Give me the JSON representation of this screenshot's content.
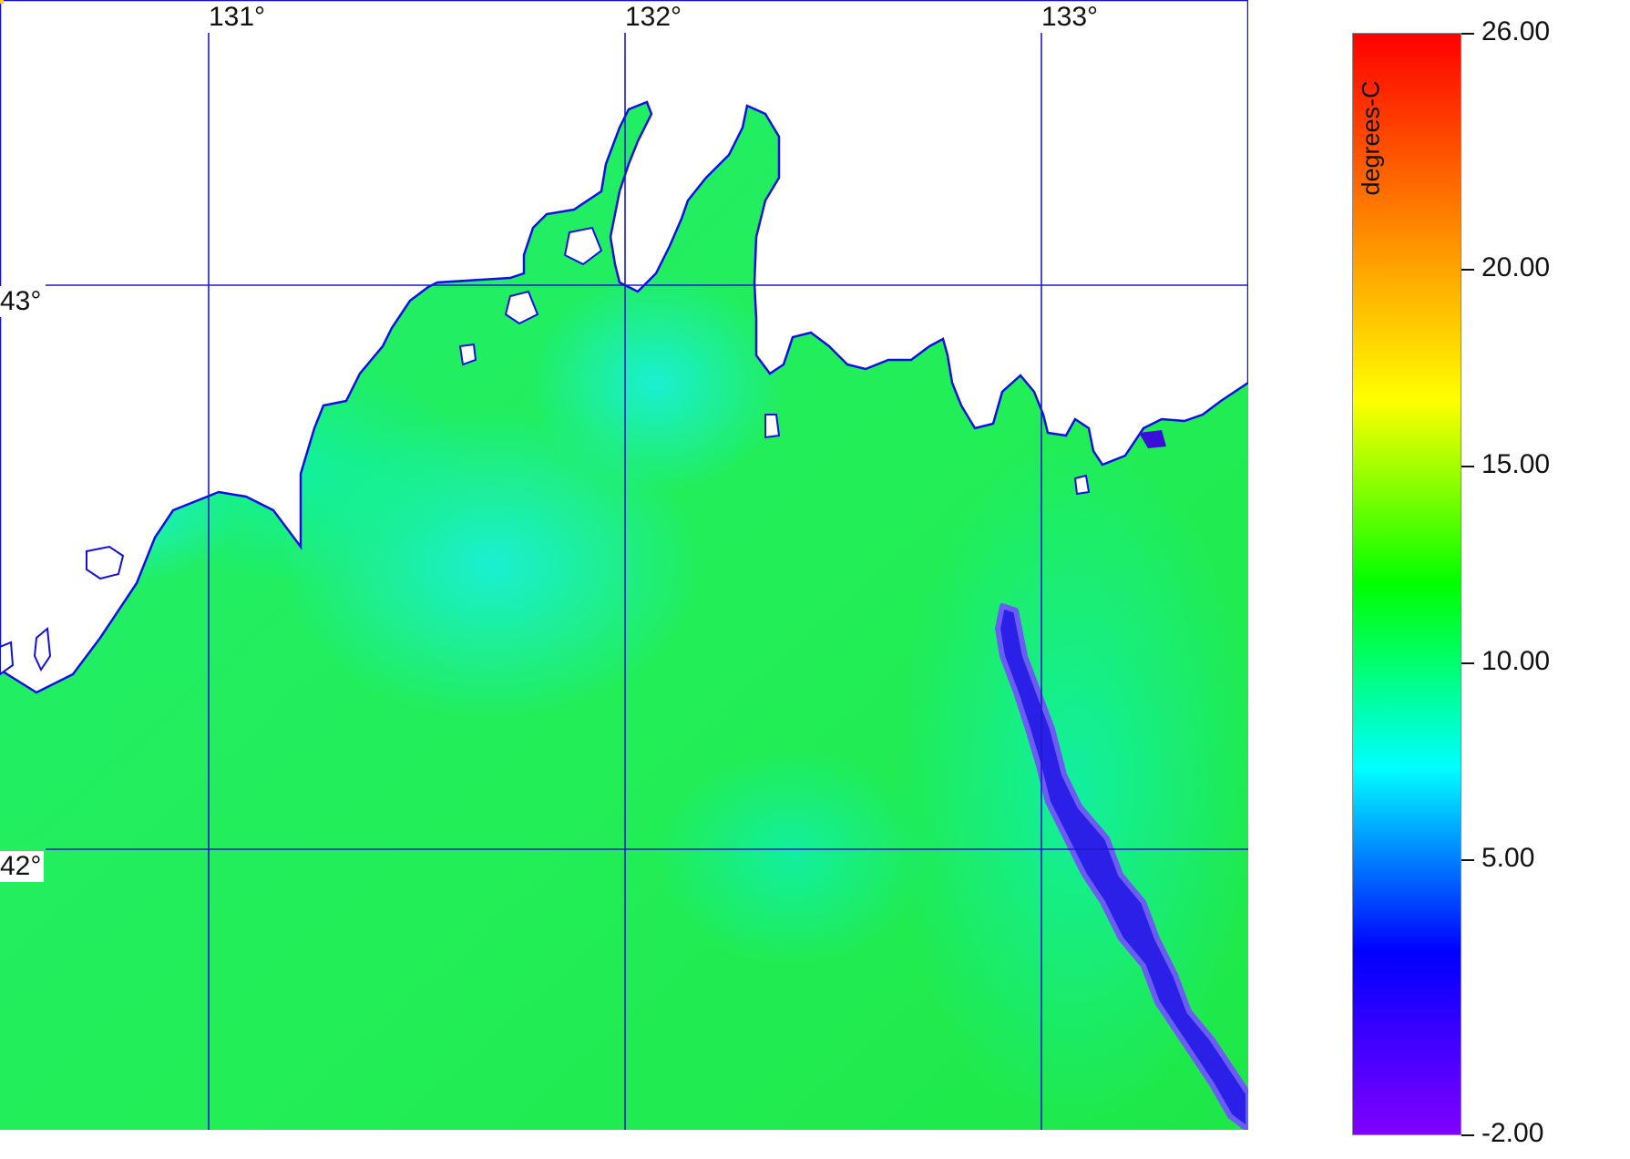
{
  "map": {
    "longitude_labels": [
      "131°",
      "132°",
      "133°"
    ],
    "latitude_labels": [
      "43°",
      "42°"
    ],
    "colors": {
      "land": "#ffffff",
      "coastline": "#1010e0",
      "graticule": "#1a1acc",
      "sea_main": "#22f048",
      "sea_cool": "#10f0a8",
      "cold_front": "#3a1ae6"
    }
  },
  "colorbar": {
    "unit": "degrees-C",
    "tick_labels": [
      "26.00",
      "20.00",
      "15.00",
      "10.00",
      "5.00",
      "-2.00"
    ],
    "value_range": [
      -2.0,
      26.0
    ],
    "gradient": [
      "#8000ff",
      "#0000ff",
      "#00ffff",
      "#00ff00",
      "#ffff00",
      "#ff8000",
      "#ff0000"
    ]
  }
}
